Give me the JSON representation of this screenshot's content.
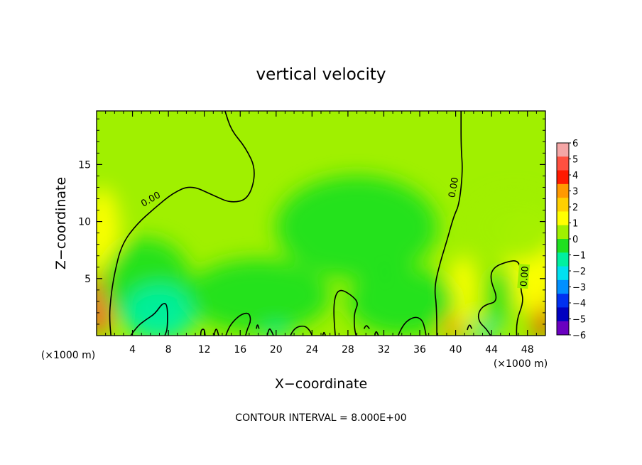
{
  "chart_data": {
    "type": "heatmap",
    "title": "vertical velocity",
    "xlabel": "X−coordinate",
    "ylabel": "Z−coordinate",
    "x_unit_left": "(×1000 m)",
    "x_unit_right": "(×1000 m)",
    "footer": "CONTOUR INTERVAL = 8.000E+00",
    "xlim": [
      0,
      50
    ],
    "ylim": [
      0,
      19.7
    ],
    "xticks": [
      4,
      8,
      12,
      16,
      20,
      24,
      28,
      32,
      36,
      40,
      44,
      48
    ],
    "xtick_labels": [
      "4",
      "8",
      "12",
      "16",
      "20",
      "24",
      "28",
      "32",
      "36",
      "40",
      "44",
      "48"
    ],
    "yticks": [
      5,
      10,
      15
    ],
    "ytick_labels": [
      "5",
      "10",
      "15"
    ],
    "colorbar": {
      "levels": [
        6,
        5,
        4,
        3,
        2,
        1,
        0,
        -1,
        -2,
        -3,
        -4,
        -5,
        -6
      ],
      "labels": [
        "6",
        "5",
        "4",
        "3",
        "2",
        "1",
        "0",
        "−1",
        "−2",
        "−3",
        "−4",
        "−5",
        "−6"
      ],
      "colors": [
        "#f4a6a6",
        "#ff5040",
        "#ff1a00",
        "#ff9900",
        "#ffd000",
        "#ffff00",
        "#a0f000",
        "#20e020",
        "#00f0a0",
        "#00e0f0",
        "#0090ff",
        "#0030f0",
        "#0000c0",
        "#6a00c0"
      ]
    },
    "background_value": 0.3,
    "field_patches": [
      {
        "x": 0.4,
        "z": 3.0,
        "rx": 1.4,
        "rz": 2.8,
        "value": 4.8
      },
      {
        "x": 0.4,
        "z": 2.4,
        "rx": 0.8,
        "rz": 1.8,
        "value": 5.5
      },
      {
        "x": 0.6,
        "z": 9.0,
        "rx": 2.0,
        "rz": 4.0,
        "value": 1.2
      },
      {
        "x": 49.6,
        "z": 2.2,
        "rx": 1.0,
        "rz": 2.4,
        "value": 4.0
      },
      {
        "x": 48.5,
        "z": 6.5,
        "rx": 3.5,
        "rz": 4.5,
        "value": 1.3
      },
      {
        "x": 46.5,
        "z": 9.5,
        "rx": 5.0,
        "rz": 3.0,
        "value": 0.9
      },
      {
        "x": 39.7,
        "z": 1.0,
        "rx": 1.3,
        "rz": 1.2,
        "value": 3.4
      },
      {
        "x": 40.8,
        "z": 4.0,
        "rx": 1.6,
        "rz": 3.0,
        "value": 1.1
      },
      {
        "x": 5.5,
        "z": 4.5,
        "rx": 5.0,
        "rz": 4.0,
        "value": -1.0
      },
      {
        "x": 7.0,
        "z": 2.0,
        "rx": 4.0,
        "rz": 2.5,
        "value": -1.3
      },
      {
        "x": 18.0,
        "z": 3.5,
        "rx": 8.0,
        "rz": 3.2,
        "value": -0.7
      },
      {
        "x": 29.0,
        "z": 9.5,
        "rx": 9.0,
        "rz": 4.5,
        "value": -0.6
      },
      {
        "x": 34.0,
        "z": 3.0,
        "rx": 6.0,
        "rz": 3.0,
        "value": -0.6
      },
      {
        "x": 20.0,
        "z": 0.3,
        "rx": 1.5,
        "rz": 0.5,
        "value": -2.0
      },
      {
        "x": 43.2,
        "z": 0.4,
        "rx": 1.2,
        "rz": 0.7,
        "value": -2.2
      },
      {
        "x": 45.0,
        "z": 3.5,
        "rx": 1.5,
        "rz": 2.5,
        "value": -0.8
      }
    ],
    "contours": [
      {
        "label": "0.00",
        "label_at": [
          6.0,
          12.0
        ],
        "label_angle": -30,
        "points": [
          [
            1.6,
            0
          ],
          [
            1.4,
            1.5
          ],
          [
            1.6,
            3.5
          ],
          [
            2.0,
            5.5
          ],
          [
            2.8,
            8.0
          ],
          [
            4.5,
            9.8
          ],
          [
            6.5,
            11.2
          ],
          [
            8.5,
            12.5
          ],
          [
            10.5,
            13.2
          ],
          [
            13.0,
            12.3
          ],
          [
            15.0,
            11.6
          ],
          [
            17.0,
            12.0
          ],
          [
            17.8,
            14.5
          ],
          [
            16.6,
            16.5
          ],
          [
            15.0,
            18.0
          ],
          [
            14.3,
            19.7
          ]
        ]
      },
      {
        "label": "",
        "points": [
          [
            3.8,
            0
          ],
          [
            4.5,
            0.8
          ],
          [
            5.5,
            1.4
          ],
          [
            6.5,
            1.9
          ],
          [
            7.4,
            2.9
          ],
          [
            7.9,
            2.7
          ],
          [
            7.9,
            0.6
          ],
          [
            7.6,
            0
          ]
        ]
      },
      {
        "label": "0.00",
        "label_at": [
          39.7,
          13.0
        ],
        "label_angle": -80,
        "points": [
          [
            37.9,
            0
          ],
          [
            37.9,
            2.5
          ],
          [
            37.6,
            4.2
          ],
          [
            38.3,
            6.5
          ],
          [
            39.1,
            8.5
          ],
          [
            39.8,
            10.5
          ],
          [
            40.4,
            11.5
          ],
          [
            40.8,
            14.5
          ],
          [
            40.6,
            16.5
          ],
          [
            40.6,
            19.7
          ]
        ]
      },
      {
        "label": "0.00",
        "label_at": [
          47.6,
          5.2
        ],
        "label_angle": -85,
        "points": [
          [
            46.8,
            0
          ],
          [
            46.7,
            1.2
          ],
          [
            47.6,
            3.0
          ],
          [
            47.2,
            4.2
          ],
          [
            47.3,
            5.8
          ],
          [
            46.9,
            6.6
          ],
          [
            45.8,
            6.5
          ],
          [
            44.2,
            6.0
          ],
          [
            43.8,
            5.0
          ],
          [
            44.8,
            3.0
          ],
          [
            43.2,
            2.7
          ],
          [
            42.5,
            2.0
          ],
          [
            42.6,
            1.2
          ],
          [
            43.4,
            0.6
          ],
          [
            43.9,
            0
          ]
        ]
      },
      {
        "label": "",
        "points": [
          [
            26.6,
            0
          ],
          [
            26.4,
            1.6
          ],
          [
            26.5,
            3.4
          ],
          [
            27.1,
            4.1
          ],
          [
            28.3,
            3.6
          ],
          [
            29.2,
            2.9
          ],
          [
            28.7,
            2.0
          ],
          [
            28.7,
            0.8
          ],
          [
            28.9,
            0
          ]
        ]
      },
      {
        "label": "",
        "points": [
          [
            14.4,
            0
          ],
          [
            14.7,
            0.7
          ],
          [
            15.4,
            1.4
          ],
          [
            16.2,
            1.9
          ],
          [
            17.0,
            2.0
          ],
          [
            17.2,
            1.3
          ],
          [
            16.8,
            0.6
          ],
          [
            16.6,
            0
          ]
        ]
      },
      {
        "label": "",
        "points": [
          [
            33.6,
            0
          ],
          [
            34.1,
            1.0
          ],
          [
            35.4,
            1.7
          ],
          [
            36.3,
            1.4
          ],
          [
            36.6,
            0.5
          ],
          [
            36.7,
            0
          ]
        ]
      },
      {
        "label": "",
        "points": [
          [
            21.6,
            0
          ],
          [
            22.0,
            0.7
          ],
          [
            23.2,
            0.9
          ],
          [
            23.8,
            0.4
          ],
          [
            24.0,
            0
          ]
        ]
      },
      {
        "label": "",
        "points": [
          [
            11.6,
            0
          ],
          [
            11.6,
            0.5
          ],
          [
            12.0,
            0.6
          ],
          [
            12.1,
            0
          ]
        ]
      },
      {
        "label": "",
        "points": [
          [
            13.1,
            0
          ],
          [
            13.2,
            0.5
          ],
          [
            13.4,
            0.6
          ],
          [
            13.6,
            0
          ]
        ]
      },
      {
        "label": "",
        "points": [
          [
            17.8,
            0.6
          ],
          [
            17.9,
            1.1
          ],
          [
            18.1,
            0.6
          ]
        ]
      },
      {
        "label": "",
        "points": [
          [
            19.0,
            0
          ],
          [
            19.2,
            0.7
          ],
          [
            19.5,
            0.4
          ],
          [
            19.7,
            0
          ]
        ]
      },
      {
        "label": "",
        "points": [
          [
            25.2,
            0
          ],
          [
            25.3,
            0.4
          ],
          [
            25.5,
            0
          ]
        ]
      },
      {
        "label": "",
        "points": [
          [
            29.8,
            0.6
          ],
          [
            30.0,
            1.0
          ],
          [
            30.4,
            0.6
          ]
        ]
      },
      {
        "label": "",
        "points": [
          [
            31.0,
            0
          ],
          [
            31.1,
            0.5
          ],
          [
            31.4,
            0
          ]
        ]
      },
      {
        "label": "",
        "points": [
          [
            41.3,
            0.5
          ],
          [
            41.5,
            1.1
          ],
          [
            41.8,
            0.6
          ]
        ]
      }
    ]
  }
}
